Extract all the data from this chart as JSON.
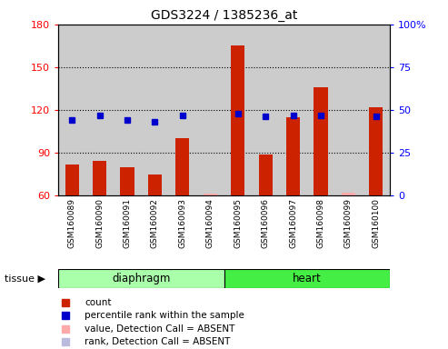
{
  "title": "GDS3224 / 1385236_at",
  "samples": [
    "GSM160089",
    "GSM160090",
    "GSM160091",
    "GSM160092",
    "GSM160093",
    "GSM160094",
    "GSM160095",
    "GSM160096",
    "GSM160097",
    "GSM160098",
    "GSM160099",
    "GSM160100"
  ],
  "tissue_groups": [
    {
      "label": "diaphragm",
      "start": 0,
      "end": 5
    },
    {
      "label": "heart",
      "start": 6,
      "end": 11
    }
  ],
  "counts": [
    82,
    84,
    80,
    75,
    100,
    61,
    165,
    89,
    115,
    136,
    62,
    122
  ],
  "ranks_pct": [
    44,
    47,
    44,
    43,
    47,
    null,
    48,
    46,
    47,
    47,
    null,
    46
  ],
  "detection_call": [
    "P",
    "P",
    "P",
    "P",
    "P",
    "A",
    "P",
    "P",
    "P",
    "P",
    "A",
    "P"
  ],
  "count_color_present": "#cc2200",
  "count_color_absent": "#ffaaaa",
  "rank_color_present": "#0000cc",
  "rank_color_absent": "#bbbbdd",
  "ylim_left": [
    60,
    180
  ],
  "ylim_right": [
    0,
    100
  ],
  "left_ticks": [
    60,
    90,
    120,
    150,
    180
  ],
  "right_ticks": [
    0,
    25,
    50,
    75,
    100
  ],
  "grid_values": [
    90,
    120,
    150
  ],
  "tissue_color_diaphragm": "#aaffaa",
  "tissue_color_heart": "#44ee44",
  "tissue_label_color": "#000000",
  "col_bg_color": "#cccccc",
  "plot_bg_color": "#ffffff",
  "bar_width": 0.5,
  "marker_size": 5,
  "legend_items": [
    {
      "color": "#cc2200",
      "label": "count"
    },
    {
      "color": "#0000cc",
      "label": "percentile rank within the sample"
    },
    {
      "color": "#ffaaaa",
      "label": "value, Detection Call = ABSENT"
    },
    {
      "color": "#bbbbdd",
      "label": "rank, Detection Call = ABSENT"
    }
  ]
}
